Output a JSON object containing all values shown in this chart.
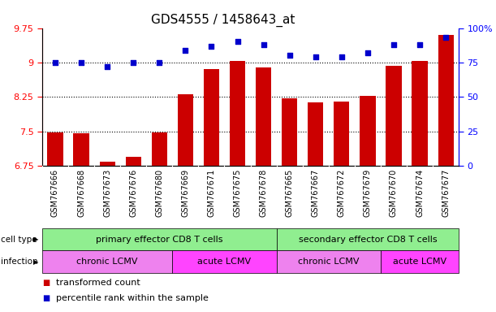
{
  "title": "GDS4555 / 1458643_at",
  "samples": [
    "GSM767666",
    "GSM767668",
    "GSM767673",
    "GSM767676",
    "GSM767680",
    "GSM767669",
    "GSM767671",
    "GSM767675",
    "GSM767678",
    "GSM767665",
    "GSM767667",
    "GSM767672",
    "GSM767679",
    "GSM767670",
    "GSM767674",
    "GSM767677"
  ],
  "bar_values": [
    7.47,
    7.46,
    6.83,
    6.94,
    7.47,
    8.3,
    8.85,
    9.03,
    8.9,
    8.22,
    8.13,
    8.15,
    8.28,
    8.93,
    9.03,
    9.6
  ],
  "dot_values": [
    75,
    75,
    72,
    75,
    75,
    84,
    87,
    90,
    88,
    80,
    79,
    79,
    82,
    88,
    88,
    93
  ],
  "bar_color": "#cc0000",
  "dot_color": "#0000cc",
  "ylim_left": [
    6.75,
    9.75
  ],
  "ylim_right": [
    0,
    100
  ],
  "yticks_left": [
    6.75,
    7.5,
    8.25,
    9.0,
    9.75
  ],
  "ytick_labels_left": [
    "6.75",
    "7.5",
    "8.25",
    "9",
    "9.75"
  ],
  "yticks_right": [
    0,
    25,
    50,
    75,
    100
  ],
  "ytick_labels_right": [
    "0",
    "25",
    "50",
    "75",
    "100%"
  ],
  "hlines": [
    7.5,
    8.25,
    9.0
  ],
  "cell_type_groups": [
    {
      "label": "primary effector CD8 T cells",
      "start": 0,
      "end": 9,
      "color": "#90ee90"
    },
    {
      "label": "secondary effector CD8 T cells",
      "start": 9,
      "end": 16,
      "color": "#90ee90"
    }
  ],
  "infection_groups": [
    {
      "label": "chronic LCMV",
      "start": 0,
      "end": 5,
      "color": "#ee82ee"
    },
    {
      "label": "acute LCMV",
      "start": 5,
      "end": 9,
      "color": "#ff44ff"
    },
    {
      "label": "chronic LCMV",
      "start": 9,
      "end": 13,
      "color": "#ee82ee"
    },
    {
      "label": "acute LCMV",
      "start": 13,
      "end": 16,
      "color": "#ff44ff"
    }
  ],
  "legend_bar_label": "transformed count",
  "legend_dot_label": "percentile rank within the sample",
  "background_color": "#ffffff",
  "plot_bg_color": "#ffffff",
  "tick_area_color": "#d3d3d3",
  "title_fontsize": 11,
  "bar_fontsize": 7,
  "label_fontsize": 8,
  "annot_fontsize": 8
}
